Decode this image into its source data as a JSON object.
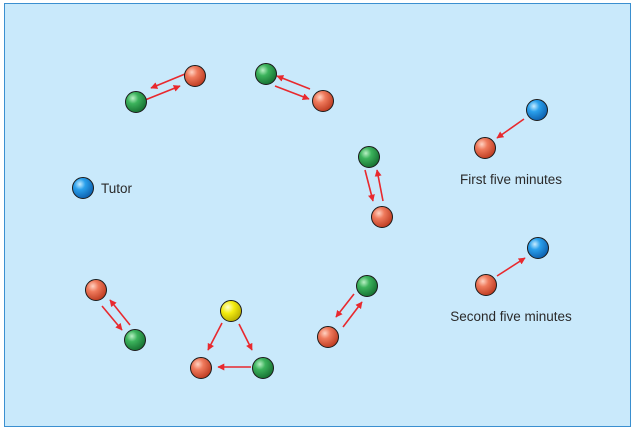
{
  "legend": {
    "tutor_label": "Tutor",
    "first_label": "First five minutes",
    "second_label": "Second five minutes"
  },
  "colors": {
    "background": "#c9e9fb",
    "border": "#3a8fd0",
    "arrow": "#e8292e",
    "tutor_ball": "#1a8fe0",
    "student_red": "#e85c3d",
    "student_green": "#2e9e4c",
    "special_yellow": "#f2e600"
  }
}
